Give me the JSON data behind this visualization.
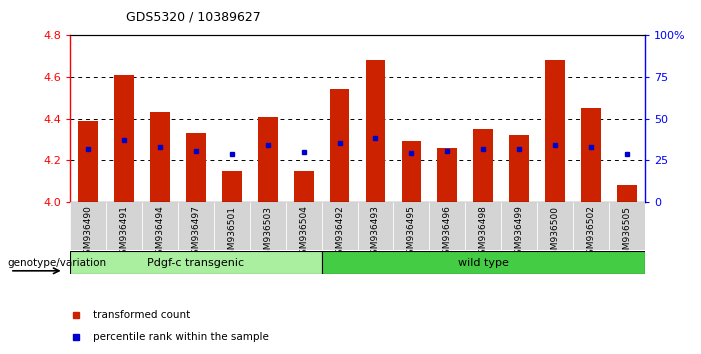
{
  "title": "GDS5320 / 10389627",
  "samples": [
    "GSM936490",
    "GSM936491",
    "GSM936494",
    "GSM936497",
    "GSM936501",
    "GSM936503",
    "GSM936504",
    "GSM936492",
    "GSM936493",
    "GSM936495",
    "GSM936496",
    "GSM936498",
    "GSM936499",
    "GSM936500",
    "GSM936502",
    "GSM936505"
  ],
  "red_values": [
    4.39,
    4.61,
    4.43,
    4.33,
    4.15,
    4.41,
    4.15,
    4.54,
    4.68,
    4.29,
    4.26,
    4.35,
    4.32,
    4.68,
    4.45,
    4.08
  ],
  "blue_values": [
    4.255,
    4.295,
    4.265,
    4.245,
    4.23,
    4.275,
    4.24,
    4.285,
    4.305,
    4.235,
    4.245,
    4.255,
    4.255,
    4.275,
    4.265,
    4.23
  ],
  "baseline": 4.0,
  "ymin": 4.0,
  "ymax": 4.8,
  "yticks": [
    4.0,
    4.2,
    4.4,
    4.6,
    4.8
  ],
  "y2ticks": [
    0,
    25,
    50,
    75,
    100
  ],
  "y2labels": [
    "0",
    "25",
    "50",
    "75",
    "100%"
  ],
  "group1_label": "Pdgf-c transgenic",
  "group2_label": "wild type",
  "group1_count": 7,
  "group2_count": 9,
  "genotype_label": "genotype/variation",
  "legend_red": "transformed count",
  "legend_blue": "percentile rank within the sample",
  "bar_color": "#cc2200",
  "blue_color": "#0000cc",
  "group1_bg": "#aaeea0",
  "group2_bg": "#44cc44",
  "bar_width": 0.55,
  "tick_bg": "#cccccc"
}
